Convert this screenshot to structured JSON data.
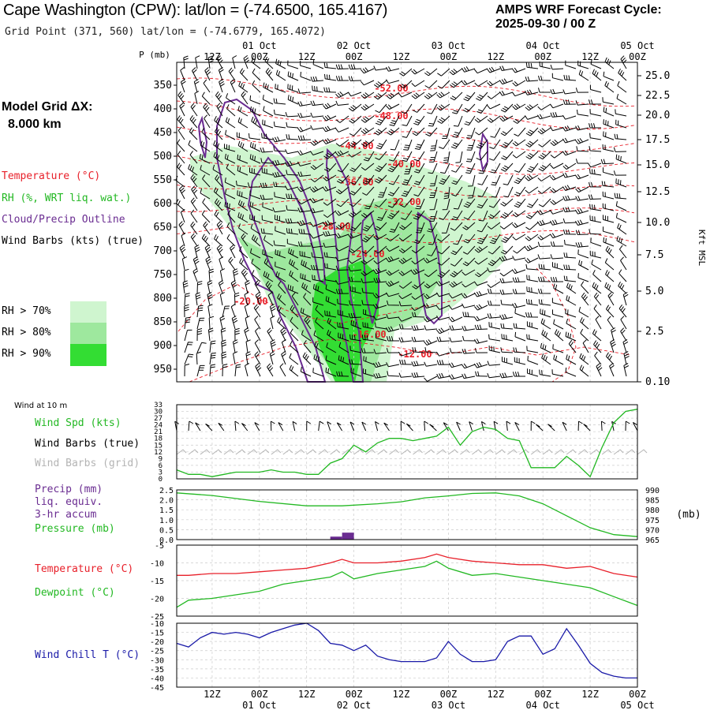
{
  "header": {
    "title": "Cape Washington (CPW):  lat/lon = (-74.6500, 165.4167)",
    "grid_point": "Grid Point (371, 560) lat/lon = (-74.6779, 165.4072)",
    "cycle_label": "AMPS WRF Forecast Cycle:",
    "cycle_value": "2025-09-30 / 00  Z"
  },
  "left_legend": {
    "model_grid_label": "Model Grid ΔX:",
    "model_grid_value": "8.000 km",
    "temperature": "Temperature (°C)",
    "rh": "RH (%, WRT liq. wat.)",
    "cloud": "Cloud/Precip Outline",
    "wind": "Wind Barbs (kts) (true)",
    "rh_levels": [
      "RH > 70%",
      "RH > 80%",
      "RH > 90%"
    ]
  },
  "colors": {
    "temperature": "#e8202a",
    "rh": "#22b822",
    "cloud": "#6a2c91",
    "wind_chill": "#1a1aa8",
    "grid_barbs": "#b4b4b4",
    "rh70": "#cff5cf",
    "rh80": "#9ee89e",
    "rh90": "#33dd33"
  },
  "time_axis": {
    "top_labels": [
      "12Z",
      "00Z",
      "12Z",
      "00Z",
      "12Z",
      "00Z",
      "12Z",
      "00Z",
      "12Z",
      "00Z"
    ],
    "top_dates": [
      "01 Oct",
      "02 Oct",
      "03 Oct",
      "04 Oct",
      "05 Oct"
    ],
    "bottom_labels": [
      "12Z",
      "00Z",
      "12Z",
      "00Z",
      "12Z",
      "00Z",
      "12Z",
      "00Z",
      "12Z",
      "00Z"
    ],
    "bottom_dates": [
      "01 Oct",
      "02 Oct",
      "03 Oct",
      "04 Oct",
      "05 Oct"
    ],
    "x_range_hours": [
      3,
      120
    ]
  },
  "chart_data": [
    {
      "type": "heatmap",
      "panel": "cross-section",
      "ylabel_left": "P (mb)",
      "ylabel_right": "Kft MSL",
      "pressure_ticks": [
        "350",
        "400",
        "450",
        "500",
        "550",
        "600",
        "650",
        "700",
        "750",
        "800",
        "850",
        "900",
        "950"
      ],
      "height_ticks": [
        "25.0",
        "22.5",
        "20.0",
        "17.5",
        "15.0",
        "12.5",
        "10.0",
        "7.5",
        "5.0",
        "2.5",
        "0.10"
      ],
      "isotherm_labels": [
        "-52.00",
        "-48.00",
        "-44.00",
        "-40.00",
        "-36.00",
        "-32.00",
        "-28.00",
        "-24.00",
        "-20.00",
        "-16.00",
        "-12.00"
      ]
    },
    {
      "type": "line",
      "panel": "wind",
      "title": "Wind at 10 m",
      "legend": [
        "Wind Spd (kts)",
        "Wind Barbs (true)",
        "Wind Barbs (grid)"
      ],
      "yticks": [
        "33",
        "30",
        "27",
        "24",
        "21",
        "18",
        "15",
        "12",
        "9",
        "6",
        "3",
        "0"
      ],
      "ylim": [
        0,
        33
      ],
      "x": [
        3,
        6,
        9,
        12,
        15,
        18,
        21,
        24,
        27,
        30,
        33,
        36,
        39,
        42,
        45,
        48,
        51,
        54,
        57,
        60,
        63,
        66,
        69,
        72,
        75,
        78,
        81,
        84,
        87,
        90,
        93,
        96,
        99,
        102,
        105,
        108,
        111,
        114,
        117,
        120
      ],
      "values": [
        4,
        2,
        2,
        1,
        2,
        3,
        3,
        3,
        4,
        3,
        3,
        2,
        2,
        7,
        9,
        15,
        12,
        16,
        18,
        18,
        17,
        18,
        19,
        23,
        15,
        21,
        23,
        22,
        18,
        17,
        5,
        5,
        5,
        10,
        6,
        1,
        14,
        25,
        30,
        31
      ]
    },
    {
      "type": "line",
      "panel": "precip-pressure",
      "legend": [
        "Precip (mm)",
        "liq. equiv.",
        "3-hr accum",
        "Pressure (mb)"
      ],
      "yticks_left": [
        "2.5",
        "2.0",
        "1.5",
        "1.0",
        "0.5",
        "0.0"
      ],
      "yticks_right": [
        "990",
        "985",
        "980",
        "975",
        "970",
        "965"
      ],
      "ylabel_right": "(mb)",
      "ylim_precip": [
        0,
        2.5
      ],
      "ylim_pressure": [
        965,
        990
      ],
      "precip": {
        "x_start": [
          42,
          45
        ],
        "values": [
          0.15,
          0.35
        ]
      },
      "pressure": {
        "x": [
          3,
          12,
          24,
          36,
          45,
          54,
          60,
          66,
          72,
          78,
          84,
          90,
          96,
          102,
          108,
          114,
          120
        ],
        "values": [
          988.5,
          987.2,
          984.2,
          982.0,
          982.0,
          983.0,
          984.0,
          986.0,
          987.0,
          988.2,
          988.5,
          987.0,
          983.0,
          977.0,
          971.0,
          967.5,
          966.5
        ]
      }
    },
    {
      "type": "line",
      "panel": "temperature",
      "legend": [
        "Temperature (°C)",
        "Dewpoint (°C)"
      ],
      "yticks": [
        "-5",
        "-10",
        "-15",
        "-20",
        "-25"
      ],
      "ylim": [
        -25,
        -5
      ],
      "x": [
        3,
        6,
        12,
        18,
        24,
        30,
        36,
        42,
        45,
        48,
        54,
        60,
        66,
        69,
        72,
        78,
        84,
        90,
        96,
        102,
        108,
        114,
        120
      ],
      "temperature": [
        -13.5,
        -13.5,
        -13.0,
        -13.0,
        -12.5,
        -12.0,
        -11.5,
        -10.0,
        -9.0,
        -10.0,
        -10.0,
        -9.5,
        -8.5,
        -7.5,
        -8.5,
        -9.5,
        -10.0,
        -10.5,
        -10.5,
        -11.5,
        -11.0,
        -13.0,
        -14.0
      ],
      "dewpoint": [
        -22.5,
        -20.5,
        -20.0,
        -19.0,
        -18.0,
        -16.0,
        -15.0,
        -14.0,
        -12.5,
        -14.5,
        -13.0,
        -12.0,
        -11.0,
        -9.5,
        -11.5,
        -13.5,
        -13.0,
        -14.0,
        -15.0,
        -16.0,
        -17.0,
        -19.5,
        -22.0
      ]
    },
    {
      "type": "line",
      "panel": "wind-chill",
      "legend": [
        "Wind Chill T (°C)"
      ],
      "yticks": [
        "-10",
        "-15",
        "-20",
        "-25",
        "-30",
        "-35",
        "-40",
        "-45"
      ],
      "ylim": [
        -45,
        -10
      ],
      "x": [
        3,
        6,
        9,
        12,
        15,
        18,
        21,
        24,
        27,
        30,
        33,
        36,
        39,
        42,
        45,
        48,
        51,
        54,
        57,
        60,
        63,
        66,
        69,
        72,
        75,
        78,
        81,
        84,
        87,
        90,
        93,
        96,
        99,
        102,
        105,
        108,
        111,
        114,
        117,
        120
      ],
      "values": [
        -21,
        -23,
        -18,
        -15,
        -16,
        -15,
        -16,
        -18,
        -15,
        -13,
        -11,
        -10,
        -14,
        -21,
        -22,
        -25,
        -22,
        -28,
        -30,
        -31,
        -31,
        -31,
        -29,
        -20,
        -27,
        -31,
        -31,
        -30,
        -20,
        -17,
        -17,
        -27,
        -24,
        -13,
        -22,
        -32,
        -37,
        -39,
        -40,
        -40
      ]
    }
  ]
}
